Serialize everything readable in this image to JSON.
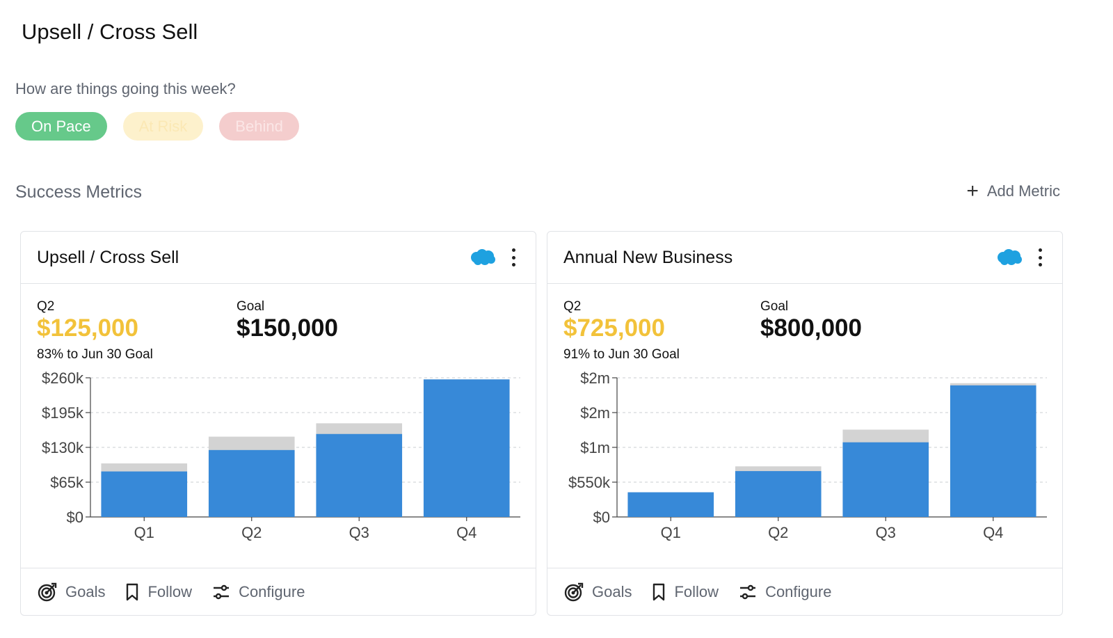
{
  "page": {
    "title": "Upsell / Cross Sell"
  },
  "status": {
    "question": "How are things going this week?",
    "options": [
      "On Pace",
      "At Risk",
      "Behind"
    ],
    "colors": {
      "on_pace": "#66c98a",
      "at_risk": "#fdf1cc",
      "behind": "#f4cdcd"
    }
  },
  "metrics_section": {
    "title": "Success Metrics",
    "add_label": "Add Metric"
  },
  "cards": [
    {
      "title": "Upsell / Cross Sell",
      "icons": [
        "salesforce-icon",
        "kebab-menu-icon"
      ],
      "period_label": "Q2",
      "current": "$125,000",
      "goal_label": "Goal",
      "goal": "$150,000",
      "progress_text": "83% to Jun 30 Goal",
      "footer": {
        "goals": "Goals",
        "follow": "Follow",
        "configure": "Configure"
      },
      "chart_data": {
        "type": "bar",
        "categories": [
          "Q1",
          "Q2",
          "Q3",
          "Q4"
        ],
        "series": [
          {
            "values": [
              85000,
              125000,
              155000,
              257000
            ],
            "color": "#3789d8"
          },
          {
            "values": [
              100000,
              150000,
              175000,
              257000
            ],
            "color": "#d3d3d3"
          }
        ],
        "ylim": [
          0,
          260000
        ],
        "yticks": [
          0,
          65000,
          130000,
          195000,
          260000
        ],
        "ytick_labels": [
          "$0",
          "$65k",
          "$130k",
          "$195k",
          "$260k"
        ],
        "grid": true
      }
    },
    {
      "title": "Annual New Business",
      "icons": [
        "salesforce-icon",
        "kebab-menu-icon"
      ],
      "period_label": "Q2",
      "current": "$725,000",
      "goal_label": "Goal",
      "goal": "$800,000",
      "progress_text": "91% to Jun 30 Goal",
      "footer": {
        "goals": "Goals",
        "follow": "Follow",
        "configure": "Configure"
      },
      "chart_data": {
        "type": "bar",
        "categories": [
          "Q1",
          "Q2",
          "Q3",
          "Q4"
        ],
        "series": [
          {
            "values": [
              390000,
              725000,
              1180000,
              2080000
            ],
            "color": "#3789d8"
          },
          {
            "values": [
              390000,
              800000,
              1380000,
              2115000
            ],
            "color": "#d3d3d3"
          }
        ],
        "ylim": [
          0,
          2200000
        ],
        "yticks": [
          0,
          550000,
          1100000,
          1650000,
          2200000
        ],
        "ytick_labels": [
          "$0",
          "$550k",
          "$1m",
          "$2m",
          "$2m"
        ],
        "grid": true
      }
    }
  ]
}
